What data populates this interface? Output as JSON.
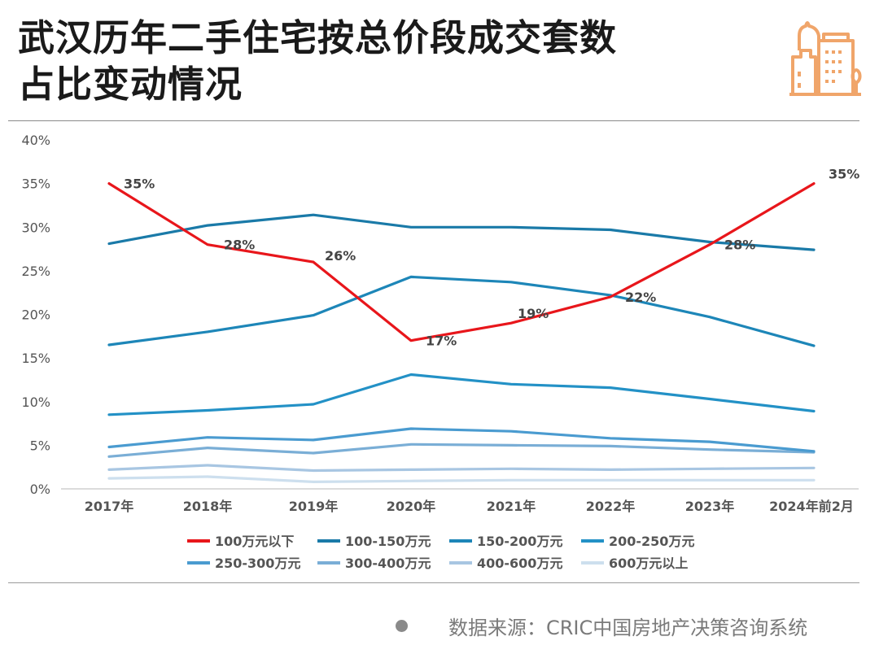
{
  "header": {
    "title_line1": "武汉历年二手住宅按总价段成交套数",
    "title_line2": "占比变动情况"
  },
  "logo": {
    "icon": "city-buildings-icon",
    "color": "#f0a56a"
  },
  "footer": {
    "source": "数据来源：CRIC中国房地产决策咨询系统"
  },
  "chart_data": {
    "type": "line",
    "title": "武汉历年二手住宅按总价段成交套数占比变动情况",
    "xlabel": "",
    "ylabel": "",
    "categories": [
      "2017年",
      "2018年",
      "2019年",
      "2020年",
      "2021年",
      "2022年",
      "2023年",
      "2024年前2月"
    ],
    "ylim": [
      0,
      40
    ],
    "yticks": [
      0,
      5,
      10,
      15,
      20,
      25,
      30,
      35,
      40
    ],
    "ytick_labels": [
      "0%",
      "5%",
      "10%",
      "15%",
      "20%",
      "25%",
      "30%",
      "35%",
      "40%"
    ],
    "grid": false,
    "legend_position": "bottom",
    "series": [
      {
        "name": "100万元以下",
        "color": "#e8161b",
        "values": [
          35,
          28,
          26,
          17,
          19,
          22,
          28,
          35
        ],
        "labels": [
          "35%",
          "28%",
          "26%",
          "17%",
          "19%",
          "22%",
          "28%",
          "35%"
        ]
      },
      {
        "name": "100-150万元",
        "color": "#1a7aa8",
        "values": [
          28.1,
          30.2,
          31.4,
          30.0,
          30.0,
          29.7,
          28.3,
          27.4
        ]
      },
      {
        "name": "150-200万元",
        "color": "#1d86b8",
        "values": [
          16.5,
          18.0,
          19.9,
          24.3,
          23.7,
          22.2,
          19.7,
          16.4
        ]
      },
      {
        "name": "200-250万元",
        "color": "#2391c6",
        "values": [
          8.5,
          9.0,
          9.7,
          13.1,
          12.0,
          11.6,
          10.3,
          8.9
        ]
      },
      {
        "name": "250-300万元",
        "color": "#4a9bd0",
        "values": [
          4.8,
          5.9,
          5.6,
          6.9,
          6.6,
          5.8,
          5.4,
          4.3
        ]
      },
      {
        "name": "300-400万元",
        "color": "#7aaed6",
        "values": [
          3.7,
          4.7,
          4.1,
          5.1,
          5.0,
          4.9,
          4.5,
          4.2
        ]
      },
      {
        "name": "400-600万元",
        "color": "#a8c6e2",
        "values": [
          2.2,
          2.7,
          2.1,
          2.2,
          2.3,
          2.2,
          2.3,
          2.4
        ]
      },
      {
        "name": "600万元以上",
        "color": "#cddfee",
        "values": [
          1.2,
          1.4,
          0.8,
          0.9,
          1.0,
          1.0,
          1.0,
          1.0
        ]
      }
    ]
  }
}
